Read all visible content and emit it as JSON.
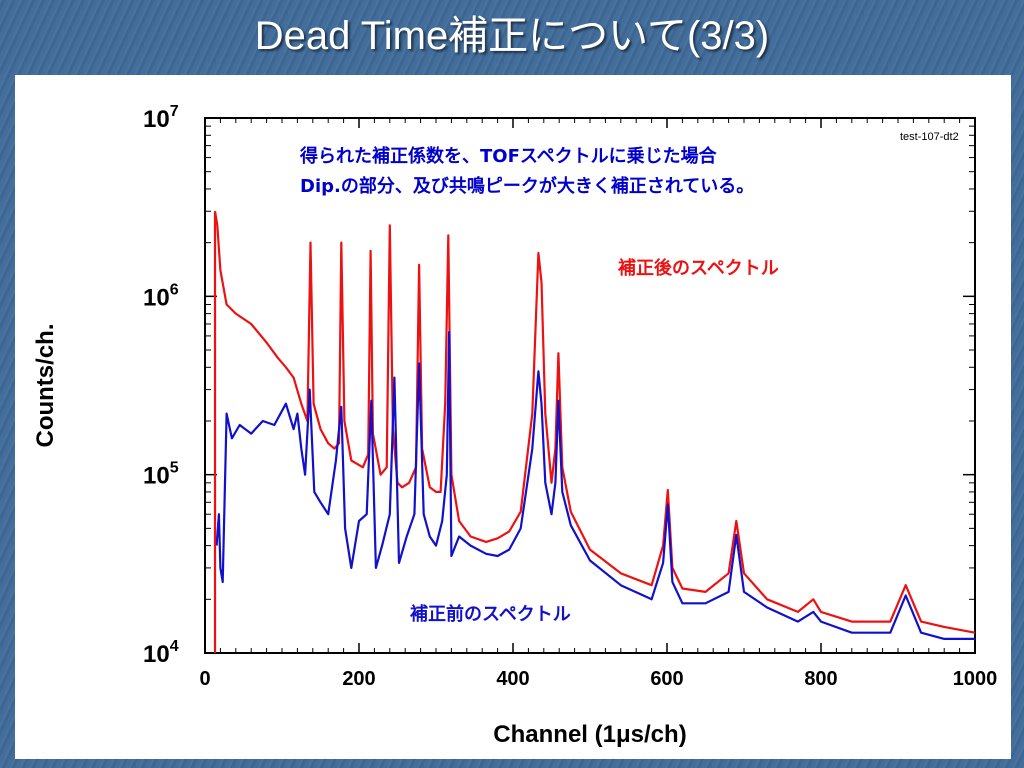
{
  "slide": {
    "title": "Dead Time補正について(3/3)"
  },
  "colors": {
    "background": "#3f6a98",
    "corrected": "#ee1111",
    "uncorrected": "#1111cc",
    "annotation": "#0000cc"
  },
  "chart_data": {
    "type": "line",
    "xlabel": "Channel (1μs/ch)",
    "ylabel": "Counts/ch.",
    "xlim": [
      0,
      1000
    ],
    "ylim": [
      10000,
      10000000
    ],
    "y_scale": "log",
    "grid": false,
    "x_ticks": [
      "0",
      "200",
      "400",
      "600",
      "800",
      "1000"
    ],
    "y_ticks": [
      {
        "base": "10",
        "exp": "4",
        "value": 10000
      },
      {
        "base": "10",
        "exp": "5",
        "value": 100000
      },
      {
        "base": "10",
        "exp": "6",
        "value": 1000000
      },
      {
        "base": "10",
        "exp": "7",
        "value": 10000000
      }
    ],
    "plot_tag": "test-107-dt2",
    "annotation_lines": [
      "得られた補正係数を、TOFスペクトルに乗じた場合",
      "Dip.の部分、及び共鳴ピークが大きく補正されている。"
    ],
    "series": [
      {
        "name": "補正後のスペクトル",
        "color": "#ee1111",
        "x": [
          13,
          16,
          20,
          28,
          40,
          60,
          80,
          95,
          105,
          115,
          125,
          133,
          137,
          141,
          150,
          160,
          168,
          174,
          177,
          181,
          190,
          205,
          212,
          215,
          218,
          228,
          236,
          240,
          244,
          250,
          256,
          265,
          274,
          278,
          282,
          292,
          300,
          306,
          312,
          316,
          320,
          330,
          345,
          365,
          380,
          395,
          410,
          425,
          433,
          437,
          442,
          450,
          455,
          459,
          464,
          475,
          500,
          540,
          580,
          595,
          601,
          607,
          620,
          650,
          680,
          690,
          700,
          730,
          770,
          790,
          800,
          840,
          890,
          910,
          930,
          960,
          1000
        ],
        "y": [
          3000000,
          2500000,
          1400000,
          900000,
          800000,
          700000,
          550000,
          450000,
          400000,
          350000,
          250000,
          200000,
          2000000,
          250000,
          180000,
          150000,
          140000,
          150000,
          2000000,
          200000,
          120000,
          110000,
          130000,
          1800000,
          170000,
          100000,
          110000,
          2500000,
          180000,
          90000,
          85000,
          90000,
          110000,
          1500000,
          140000,
          85000,
          80000,
          80000,
          250000,
          2200000,
          100000,
          55000,
          45000,
          42000,
          44000,
          48000,
          62000,
          220000,
          1750000,
          1200000,
          220000,
          90000,
          140000,
          480000,
          110000,
          62000,
          38000,
          28000,
          24000,
          40000,
          82000,
          30000,
          23000,
          22000,
          28000,
          55000,
          28000,
          20000,
          17000,
          20000,
          17000,
          15000,
          15000,
          24000,
          15000,
          14000,
          13000
        ]
      },
      {
        "name": "補正前のスペクトル",
        "color": "#1111cc",
        "x": [
          15,
          18,
          20,
          23,
          28,
          35,
          45,
          60,
          75,
          90,
          105,
          115,
          120,
          125,
          130,
          136,
          142,
          150,
          160,
          170,
          177,
          182,
          190,
          200,
          210,
          216,
          222,
          230,
          240,
          246,
          252,
          262,
          272,
          278,
          284,
          292,
          300,
          308,
          314,
          317,
          320,
          330,
          345,
          365,
          380,
          395,
          410,
          425,
          433,
          437,
          442,
          450,
          455,
          459,
          464,
          475,
          500,
          540,
          580,
          595,
          601,
          607,
          620,
          650,
          680,
          690,
          700,
          730,
          770,
          790,
          800,
          840,
          890,
          910,
          930,
          960,
          1000
        ],
        "y": [
          40000,
          60000,
          30000,
          25000,
          220000,
          160000,
          190000,
          170000,
          200000,
          190000,
          250000,
          180000,
          220000,
          140000,
          100000,
          300000,
          80000,
          70000,
          60000,
          120000,
          240000,
          50000,
          30000,
          55000,
          60000,
          260000,
          30000,
          40000,
          60000,
          350000,
          32000,
          45000,
          60000,
          420000,
          60000,
          45000,
          40000,
          55000,
          100000,
          630000,
          35000,
          45000,
          40000,
          36000,
          35000,
          38000,
          50000,
          140000,
          380000,
          250000,
          90000,
          60000,
          90000,
          260000,
          80000,
          52000,
          33000,
          24000,
          20000,
          32000,
          68000,
          25000,
          19000,
          19000,
          22000,
          46000,
          22000,
          18000,
          15000,
          17000,
          15000,
          13000,
          13000,
          21000,
          13000,
          12000,
          12000
        ]
      }
    ]
  }
}
